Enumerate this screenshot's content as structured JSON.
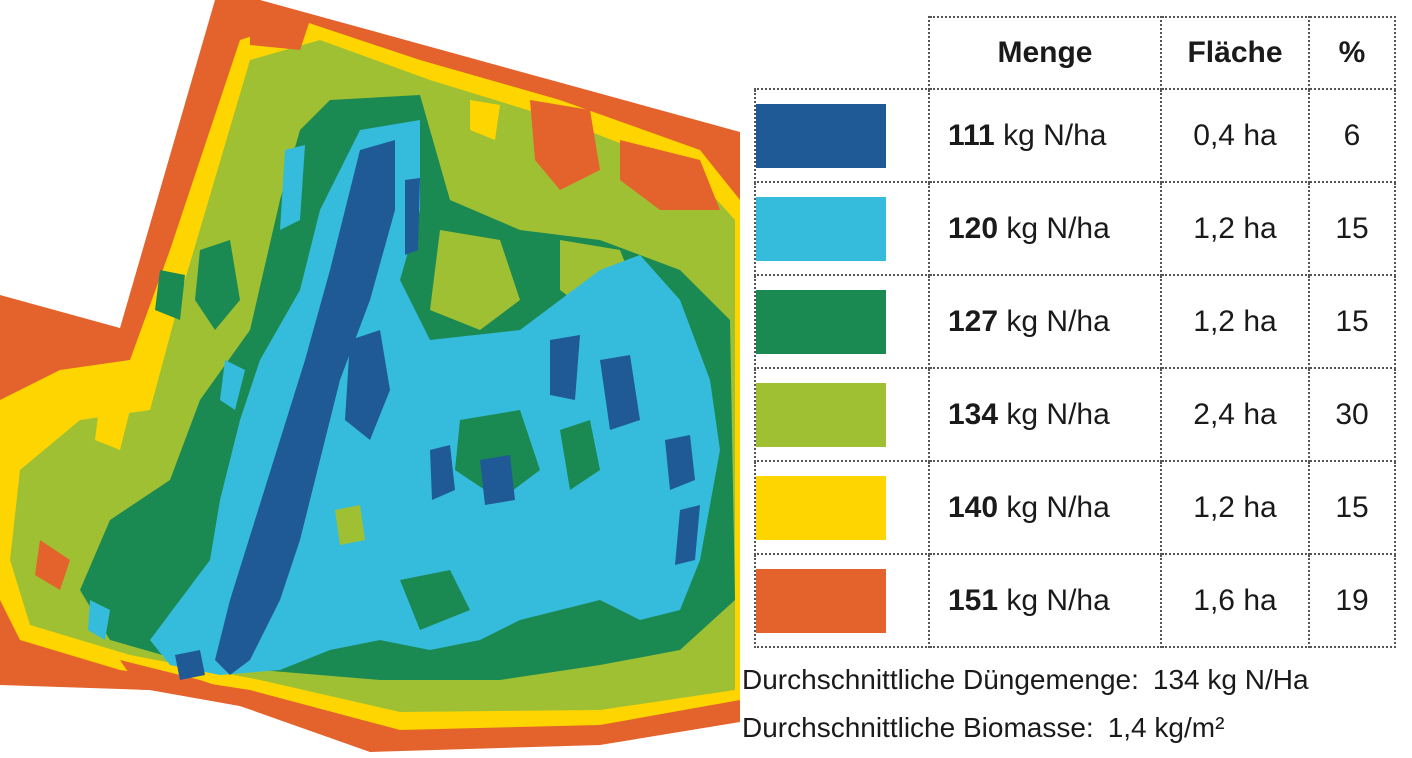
{
  "legend": {
    "headers": {
      "amount": "Menge",
      "area": "Fläche",
      "percent": "%"
    },
    "rows": [
      {
        "class": "c1",
        "color": "#1f5a96",
        "amount": "111",
        "unit": "kg N/ha",
        "area": "0,4 ha",
        "percent": "6"
      },
      {
        "class": "c2",
        "color": "#35bcdc",
        "amount": "120",
        "unit": "kg N/ha",
        "area": "1,2 ha",
        "percent": "15"
      },
      {
        "class": "c3",
        "color": "#1a8a52",
        "amount": "127",
        "unit": "kg N/ha",
        "area": "1,2 ha",
        "percent": "15"
      },
      {
        "class": "c4",
        "color": "#9fc033",
        "amount": "134",
        "unit": "kg N/ha",
        "area": "2,4 ha",
        "percent": "30"
      },
      {
        "class": "c5",
        "color": "#ffd500",
        "amount": "140",
        "unit": "kg N/ha",
        "area": "1,2 ha",
        "percent": "15"
      },
      {
        "class": "c6",
        "color": "#e4622b",
        "amount": "151",
        "unit": "kg N/ha",
        "area": "1,6 ha",
        "percent": "19"
      }
    ]
  },
  "summary": {
    "avg_fertilizer_label": "Durchschnittliche Düngemenge:",
    "avg_fertilizer_value": "134 kg N/Ha",
    "avg_biomass_label": "Durchschnittliche Biomasse:",
    "avg_biomass_value": "1,4 kg/m²"
  }
}
